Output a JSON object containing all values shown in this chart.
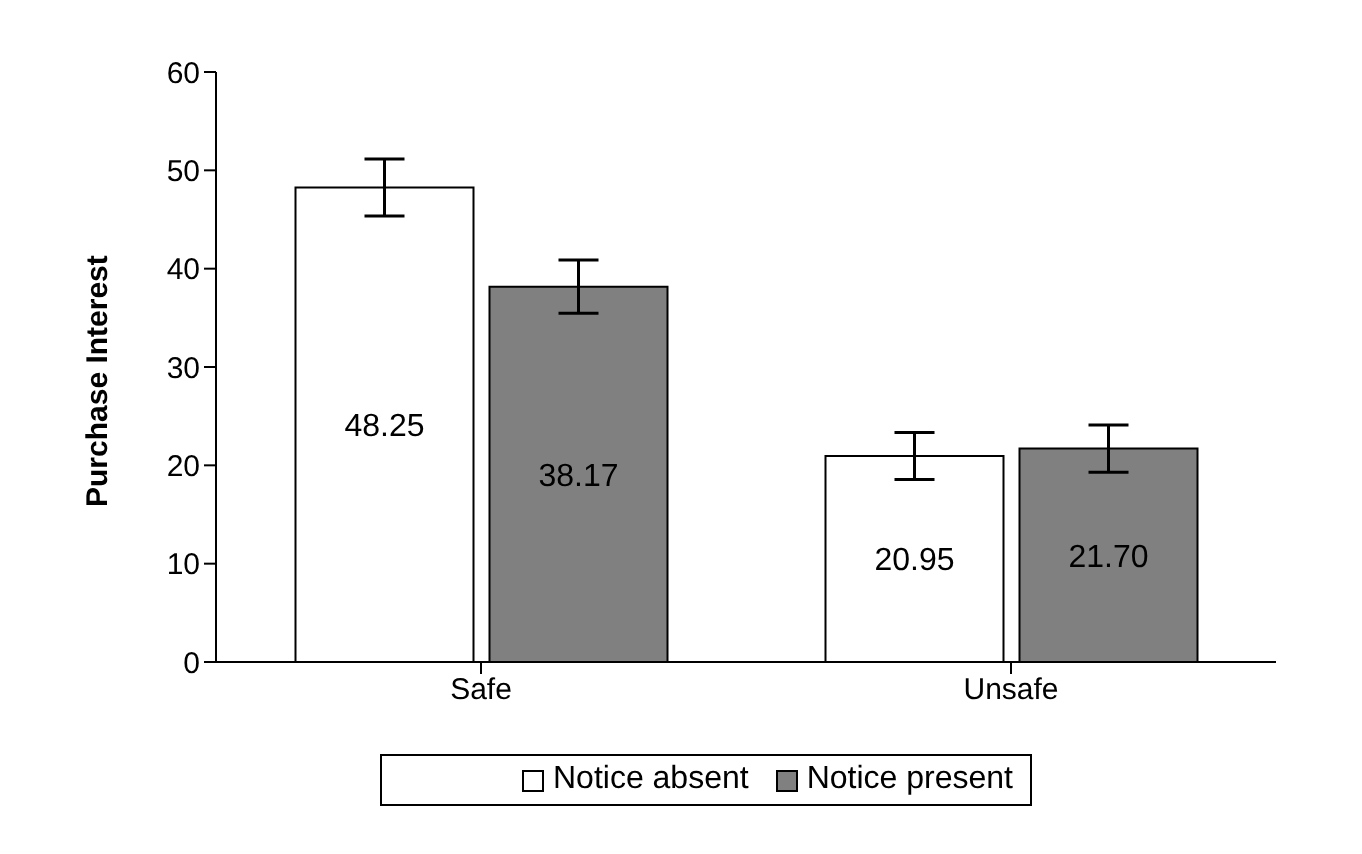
{
  "chart_data": {
    "type": "bar",
    "ylabel": "Purchase Interest",
    "categories": [
      "Safe",
      "Unsafe"
    ],
    "series": [
      {
        "name": "Notice absent",
        "color": "#ffffff",
        "values": [
          48.25,
          20.95
        ],
        "errors": [
          2.9,
          2.4
        ],
        "value_labels": [
          "48.25",
          "20.95"
        ]
      },
      {
        "name": "Notice present",
        "color": "#808080",
        "values": [
          38.17,
          21.7
        ],
        "errors": [
          2.7,
          2.4
        ],
        "value_labels": [
          "38.17",
          "21.70"
        ]
      }
    ],
    "ylim": [
      0,
      60
    ],
    "yticks": [
      0,
      10,
      20,
      30,
      40,
      50,
      60
    ],
    "grid": false,
    "legend": "bottom"
  }
}
